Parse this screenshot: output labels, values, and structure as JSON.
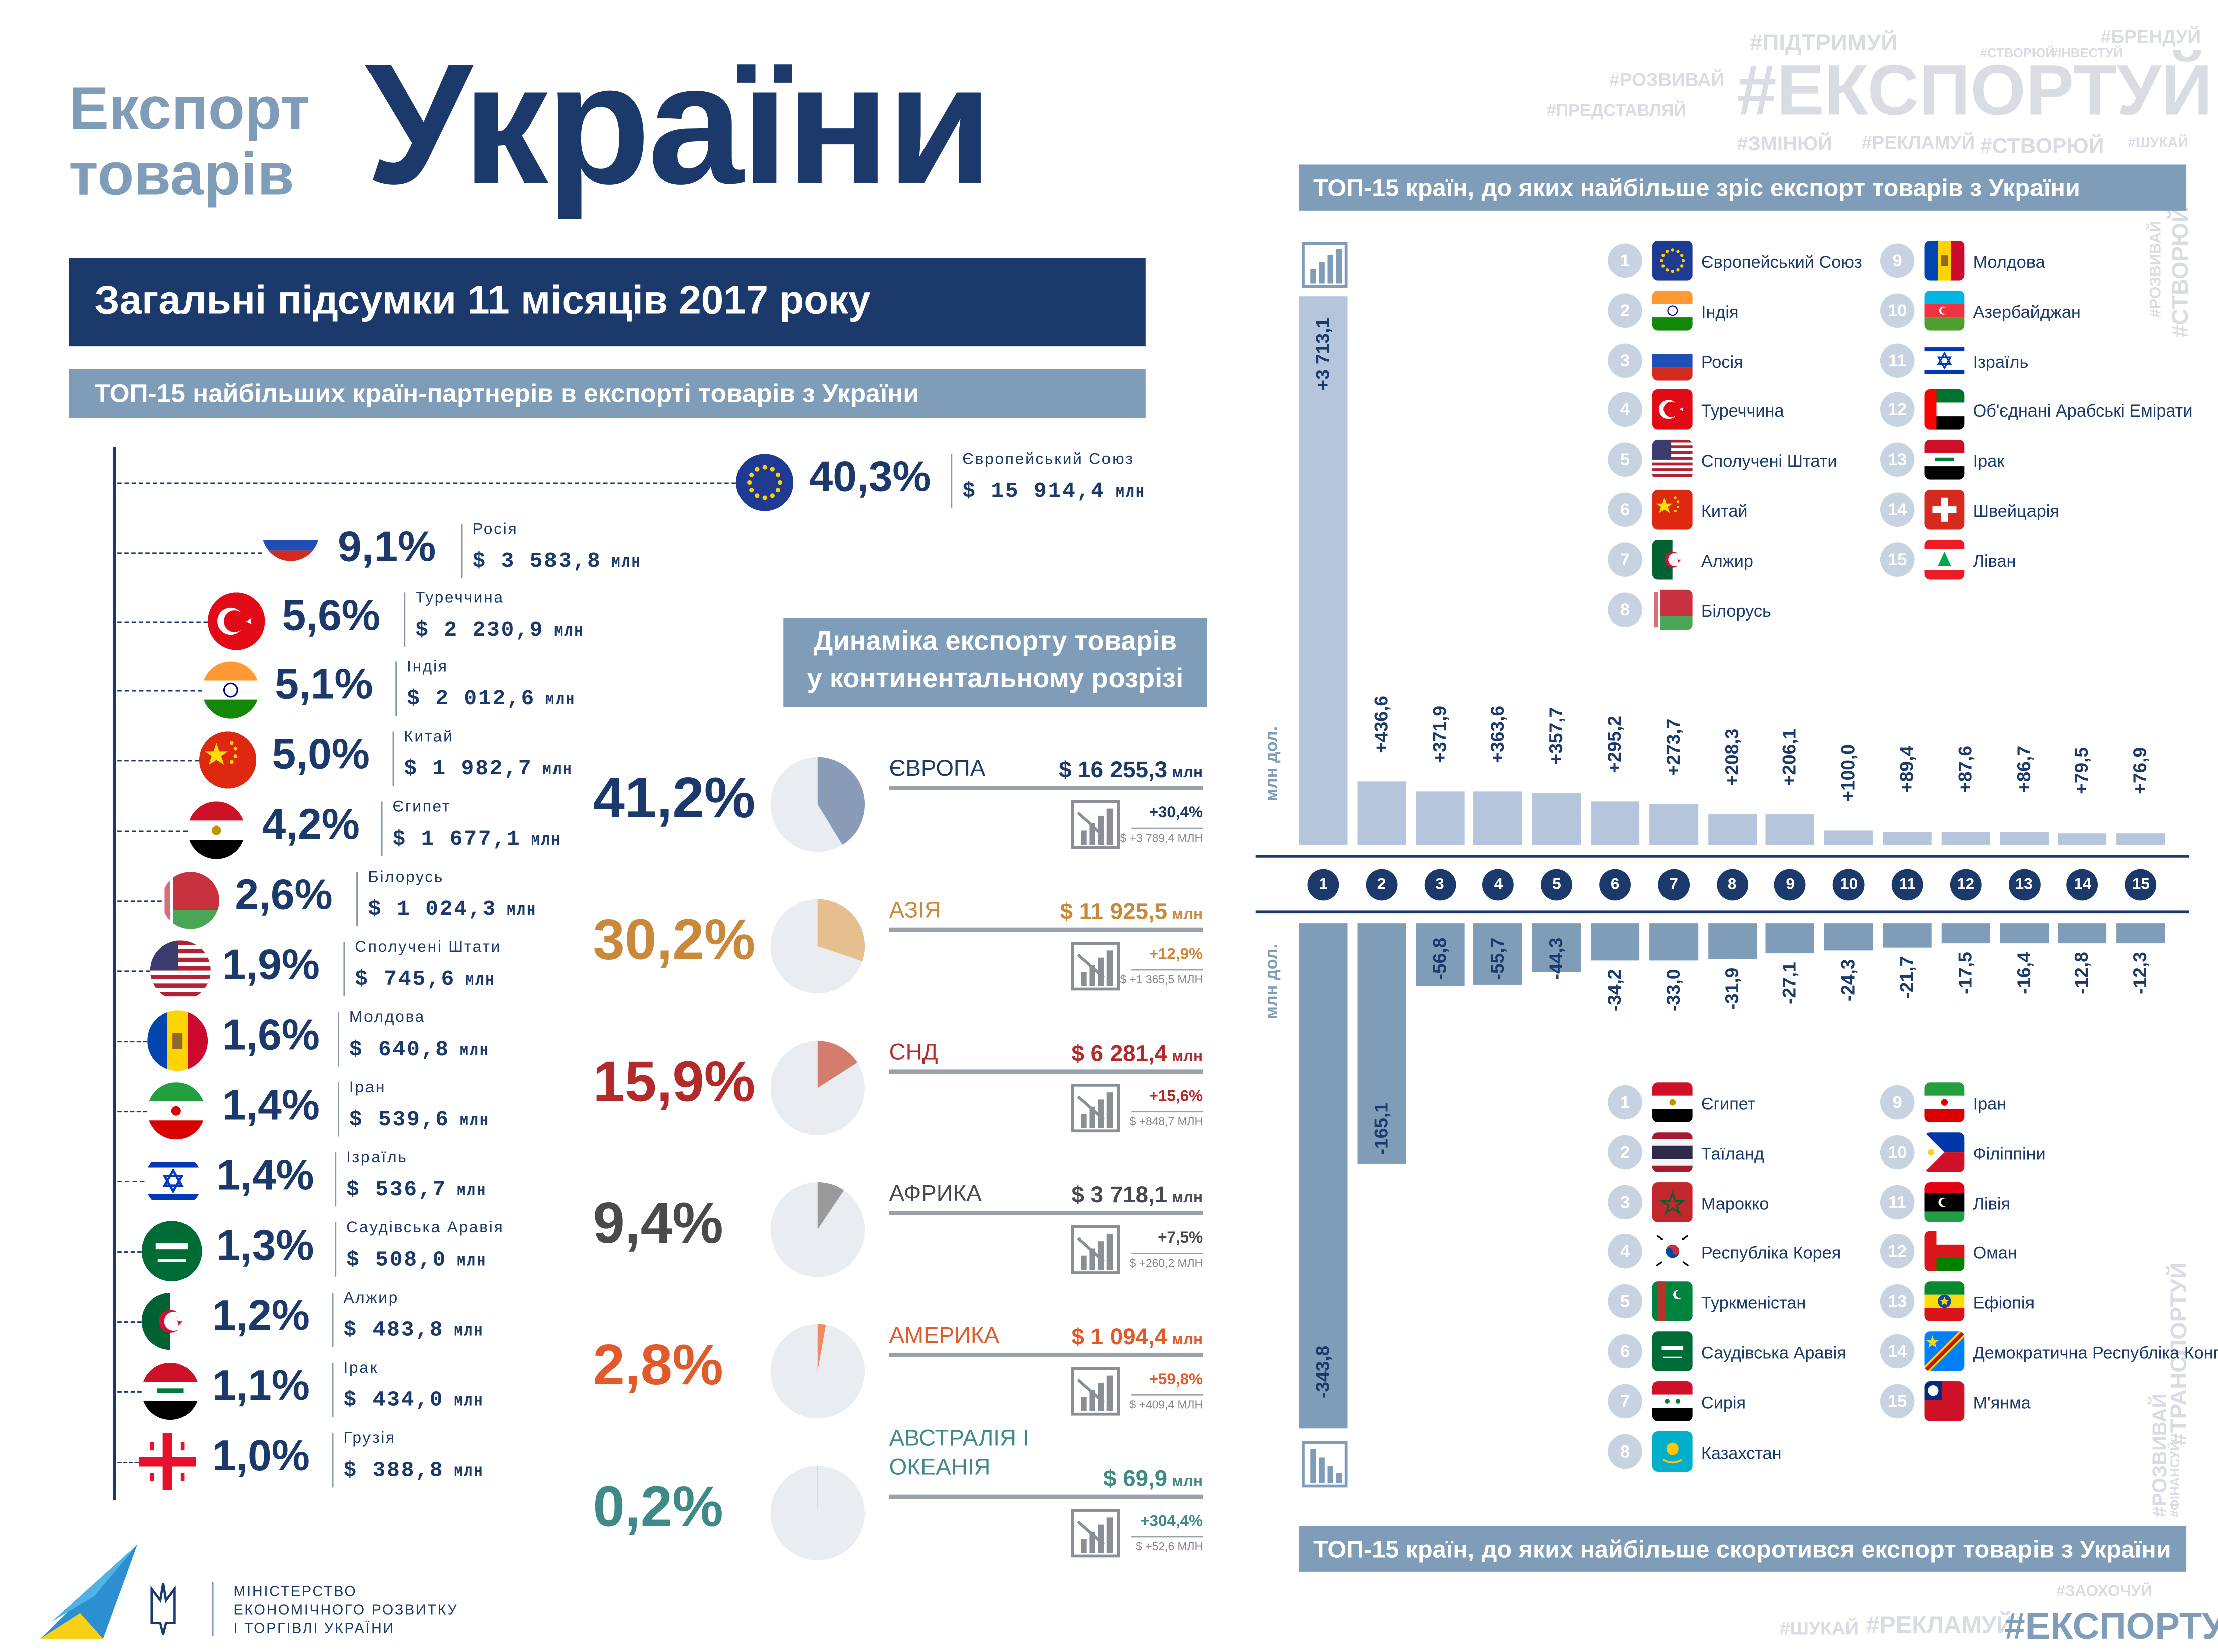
{
  "header": {
    "title_small_1": "Експорт",
    "title_small_2": "товарів",
    "title_big": "України",
    "banner": "Загальні підсумки 11 місяців 2017 року",
    "left_subtitle": "ТОП-15 найбільших країн-партнерів в експорті товарів з України",
    "continent_title_1": "Динаміка експорту товарів",
    "continent_title_2": "у континентальному розрізі",
    "right_top_title": "ТОП-15 країн, до яких найбільше зріс експорт товарів з України",
    "right_bottom_title": "ТОП-15 країн, до яких найбільше скоротився експорт товарів з України",
    "unit_label": "млн дол.",
    "ministry_1": "МІНІСТЕРСТВО",
    "ministry_2": "ЕКОНОМІЧНОГО РОЗВИТКУ",
    "ministry_3": "І ТОРГІВЛІ УКРАЇНИ"
  },
  "hashtags": {
    "top": [
      "#ПІДТРИМУЙ",
      "#СТВОРЮЙ",
      "#ІНВЕСТУЙ",
      "#БРЕНДУЙ",
      "#РОЗВИВАЙ",
      "#ПРЕДСТАВЛЯЙ",
      "#ЕКСПОРТУЙ",
      "#ЗМІНЮЙ",
      "#РЕКЛАМУЙ",
      "#СТВОРЮЙ",
      "#ШУКАЙ"
    ],
    "side_top": [
      "#РОЗВИВАЙ",
      "#СТВОРЮЙ"
    ],
    "side_bottom": [
      "#РОЗВИВАЙ",
      "#ФІНАНСУЙ",
      "#ТРАНСПОРТУЙ"
    ],
    "bottom": [
      "#ЗАОХОЧУЙ",
      "#ШУКАЙ",
      "#РЕКЛАМУЙ",
      "#ЕКСПОРТУЙ"
    ]
  },
  "colors": {
    "navy": "#1b3a6b",
    "steel": "#7f9db8",
    "europe": "#8a9bb8",
    "asia": "#e6bf8f",
    "cis": "#d47d6e",
    "africa": "#9a9a9a",
    "america": "#f08a63",
    "oceania": "#6aa5a3"
  },
  "top_partners": {
    "unit": "МЛН",
    "items": [
      {
        "name": "Європейський Союз",
        "pct": "40,3%",
        "value": "$ 15 914,4",
        "flag": "eu"
      },
      {
        "name": "Росія",
        "pct": "9,1%",
        "value": "$ 3 583,8",
        "flag": "ru"
      },
      {
        "name": "Туреччина",
        "pct": "5,6%",
        "value": "$ 2 230,9",
        "flag": "tr"
      },
      {
        "name": "Індія",
        "pct": "5,1%",
        "value": "$ 2 012,6",
        "flag": "in"
      },
      {
        "name": "Китай",
        "pct": "5,0%",
        "value": "$ 1 982,7",
        "flag": "cn"
      },
      {
        "name": "Єгипет",
        "pct": "4,2%",
        "value": "$ 1 677,1",
        "flag": "eg"
      },
      {
        "name": "Білорусь",
        "pct": "2,6%",
        "value": "$ 1 024,3",
        "flag": "by"
      },
      {
        "name": "Сполучені Штати",
        "pct": "1,9%",
        "value": "$ 745,6",
        "flag": "us"
      },
      {
        "name": "Молдова",
        "pct": "1,6%",
        "value": "$ 640,8",
        "flag": "md"
      },
      {
        "name": "Іран",
        "pct": "1,4%",
        "value": "$ 539,6",
        "flag": "ir"
      },
      {
        "name": "Ізраїль",
        "pct": "1,4%",
        "value": "$ 536,7",
        "flag": "il"
      },
      {
        "name": "Саудівська Аравія",
        "pct": "1,3%",
        "value": "$ 508,0",
        "flag": "sa"
      },
      {
        "name": "Алжир",
        "pct": "1,2%",
        "value": "$ 483,8",
        "flag": "dz"
      },
      {
        "name": "Ірак",
        "pct": "1,1%",
        "value": "$ 434,0",
        "flag": "iq"
      },
      {
        "name": "Грузія",
        "pct": "1,0%",
        "value": "$ 388,8",
        "flag": "ge"
      }
    ]
  },
  "continents": [
    {
      "name": "ЄВРОПА",
      "pct": "41,2%",
      "share": 41.2,
      "value": "$  16 255,3",
      "unit": "млн",
      "growth": "+30,4%",
      "growth_abs": "$ +3 789,4 МЛН",
      "color": "#8a9bb8",
      "pct_color": "#1b3a6b",
      "val_color": "#1b3a6b",
      "growth_color": "#1b3a6b"
    },
    {
      "name": "АЗІЯ",
      "pct": "30,2%",
      "share": 30.2,
      "value": "$  11 925,5",
      "unit": "млн",
      "growth": "+12,9%",
      "growth_abs": "$ +1 365,5 МЛН",
      "color": "#e6bf8f",
      "pct_color": "#c9893a",
      "val_color": "#c9893a",
      "growth_color": "#c9893a"
    },
    {
      "name": "СНД",
      "pct": "15,9%",
      "share": 15.9,
      "value": "$  6 281,4",
      "unit": "млн",
      "growth": "+15,6%",
      "growth_abs": "$ +848,7 МЛН",
      "color": "#d47d6e",
      "pct_color": "#b22a2a",
      "val_color": "#b22a2a",
      "growth_color": "#b22a2a"
    },
    {
      "name": "АФРИКА",
      "pct": "9,4%",
      "share": 9.4,
      "value": "$  3 718,1",
      "unit": "млн",
      "growth": "+7,5%",
      "growth_abs": "$ +260,2 МЛН",
      "color": "#9a9a9a",
      "pct_color": "#4a4a4a",
      "val_color": "#4a4a4a",
      "growth_color": "#4a4a4a"
    },
    {
      "name": "АМЕРИКА",
      "pct": "2,8%",
      "share": 2.8,
      "value": "$  1 094,4",
      "unit": "млн",
      "growth": "+59,8%",
      "growth_abs": "$ +409,4 МЛН",
      "color": "#f08a63",
      "pct_color": "#e05a2b",
      "val_color": "#e05a2b",
      "growth_color": "#e05a2b"
    },
    {
      "name": "АВСТРАЛІЯ І ОКЕАНІЯ",
      "name_1": "АВСТРАЛІЯ І",
      "name_2": "ОКЕАНІЯ",
      "pct": "0,2%",
      "share": 0.2,
      "value": "$  69,9",
      "unit": "млн",
      "growth": "+304,4%",
      "growth_abs": "$ +52,6 МЛН",
      "color": "#6aa5a3",
      "pct_color": "#3f8a88",
      "val_color": "#3f8a88",
      "growth_color": "#3f8a88"
    }
  ],
  "chart_data": [
    {
      "type": "bar",
      "title": "ТОП-15 країн, до яких найбільше зріс експорт товарів з України",
      "ylabel": "млн дол.",
      "categories": [
        "1",
        "2",
        "3",
        "4",
        "5",
        "6",
        "7",
        "8",
        "9",
        "10",
        "11",
        "12",
        "13",
        "14",
        "15"
      ],
      "values": [
        3713.1,
        436.6,
        371.9,
        363.6,
        357.7,
        295.2,
        273.7,
        208.3,
        206.1,
        100.0,
        89.4,
        87.6,
        86.7,
        79.5,
        76.9
      ],
      "value_labels": [
        "+3 713,1",
        "+436,6",
        "+371,9",
        "+363,6",
        "+357,7",
        "+295,2",
        "+273,7",
        "+208,3",
        "+206,1",
        "+100,0",
        "+89,4",
        "+87,6",
        "+86,7",
        "+79,5",
        "+76,9"
      ],
      "legend": [
        "Європейський Союз",
        "Індія",
        "Росія",
        "Туреччина",
        "Сполучені Штати",
        "Китай",
        "Алжир",
        "Білорусь",
        "Молдова",
        "Азербайджан",
        "Ізраїль",
        "Об'єднані Арабські Емірати",
        "Ірак",
        "Швейцарія",
        "Ліван"
      ],
      "legend_flags": [
        "eu",
        "in",
        "ru",
        "tr",
        "us",
        "cn",
        "dz",
        "by",
        "md",
        "az",
        "il",
        "ae",
        "iq",
        "ch",
        "lb"
      ]
    },
    {
      "type": "bar",
      "title": "ТОП-15 країн, до яких найбільше скоротився експорт товарів з України",
      "ylabel": "млн дол.",
      "categories": [
        "1",
        "2",
        "3",
        "4",
        "5",
        "6",
        "7",
        "8",
        "9",
        "10",
        "11",
        "12",
        "13",
        "14",
        "15"
      ],
      "values": [
        -343.8,
        -165.1,
        -56.8,
        -55.7,
        -44.3,
        -34.2,
        -33.0,
        -31.9,
        -27.1,
        -24.3,
        -21.7,
        -17.5,
        -16.4,
        -12.8,
        -12.3
      ],
      "value_labels": [
        "-343,8",
        "-165,1",
        "-56,8",
        "-55,7",
        "-44,3",
        "-34,2",
        "-33,0",
        "-31,9",
        "-27,1",
        "-24,3",
        "-21,7",
        "-17,5",
        "-16,4",
        "-12,8",
        "-12,3"
      ],
      "legend": [
        "Єгипет",
        "Таїланд",
        "Марокко",
        "Республіка Корея",
        "Туркменістан",
        "Саудівська Аравія",
        "Сирія",
        "Казахстан",
        "Іран",
        "Філіппіни",
        "Лівія",
        "Оман",
        "Ефіопія",
        "Демократична Республіка Конго",
        "М'янма"
      ],
      "legend_flags": [
        "eg",
        "th",
        "ma",
        "kr",
        "tm",
        "sa",
        "sy",
        "kz",
        "ir",
        "ph",
        "ly",
        "om",
        "et",
        "cd",
        "mm"
      ]
    }
  ]
}
